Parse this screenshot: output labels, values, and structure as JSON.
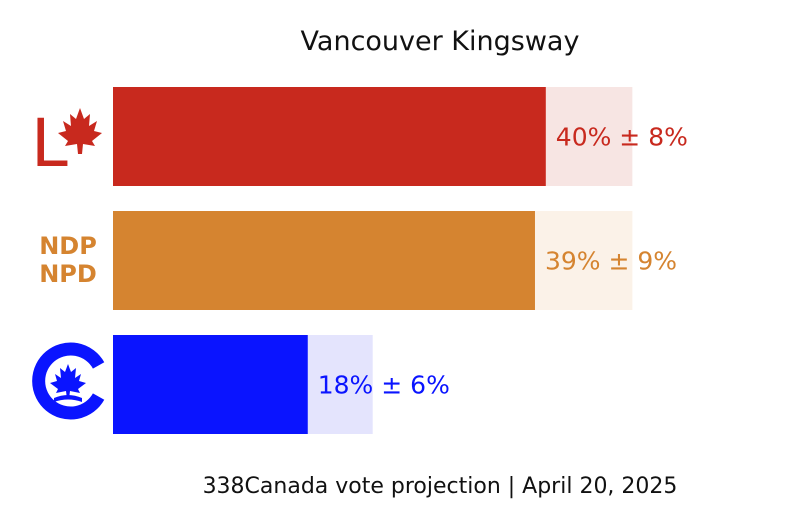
{
  "chart_data": {
    "type": "bar",
    "orientation": "horizontal",
    "title": "Vancouver Kingsway",
    "footer": "338Canada vote projection | April 20, 2025",
    "categories": [
      "LPC",
      "NDP",
      "CPC"
    ],
    "series": [
      {
        "values": [
          40,
          39,
          18
        ],
        "margins": [
          8,
          9,
          6
        ],
        "labels": [
          "40% ± 8%",
          "39% ± 9%",
          "18% ± 6%"
        ]
      }
    ],
    "xlim": [
      0,
      61
    ],
    "grid": false,
    "legend": "none",
    "colors": {
      "LPC": {
        "bar": "#c8291e",
        "band": "#f7e5e3",
        "text": "#c8291e"
      },
      "NDP": {
        "bar": "#d58430",
        "band": "#fbf2e8",
        "text": "#d58430"
      },
      "CPC": {
        "bar": "#0a14ff",
        "band": "#e4e4fd",
        "text": "#0a14ff"
      }
    },
    "logos": {
      "LPC": {
        "icon": "liberal-logo-icon",
        "letter": "L"
      },
      "NDP": {
        "icon": "ndp-logo-icon",
        "line1": "NDP",
        "line2": "NPD"
      },
      "CPC": {
        "icon": "conservative-logo-icon"
      }
    }
  }
}
